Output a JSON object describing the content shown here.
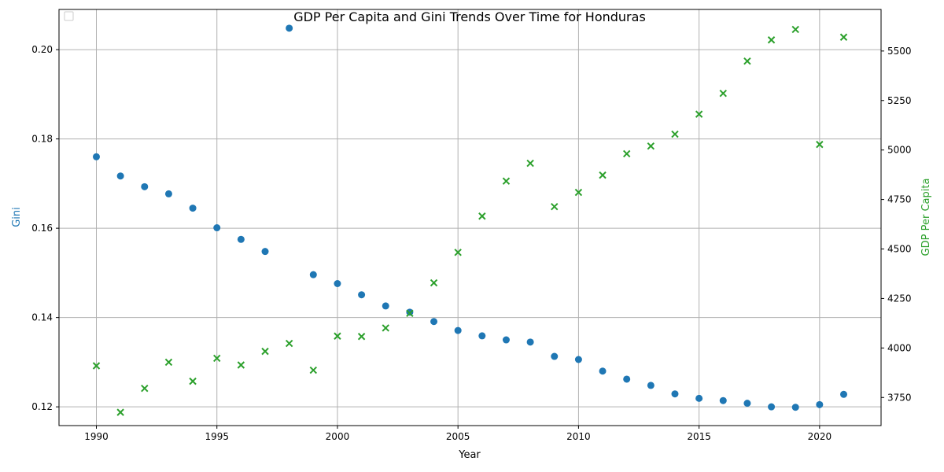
{
  "chart_data": {
    "type": "scatter",
    "title": "GDP Per Capita and Gini Trends Over Time for Honduras",
    "xlabel": "Year",
    "ylabel_left": "Gini",
    "ylabel_right": "GDP Per Capita",
    "xlim": [
      1988.45,
      1992.55
    ],
    "grid": true,
    "legend": "top-left, empty",
    "x_ticks": [
      1990,
      1995,
      2000,
      2005,
      2010,
      2015,
      2020
    ],
    "left_axis": {
      "range": [
        0.1158,
        0.209
      ],
      "ticks": [
        "0.12",
        "0.14",
        "0.16",
        "0.18",
        "0.20"
      ],
      "tick_values": [
        0.12,
        0.14,
        0.16,
        0.18,
        0.2
      ],
      "color": "#1f77b4"
    },
    "right_axis": {
      "range": [
        3608,
        5710
      ],
      "ticks": [
        "3750",
        "4000",
        "4250",
        "4500",
        "4750",
        "5000",
        "5250",
        "5500"
      ],
      "tick_values": [
        3750,
        4000,
        4250,
        4500,
        4750,
        5000,
        5250,
        5500
      ],
      "color": "#2ca02c"
    },
    "x": [
      1990,
      1991,
      1992,
      1993,
      1994,
      1995,
      1996,
      1997,
      1998,
      1999,
      2000,
      2001,
      2002,
      2003,
      2004,
      2005,
      2006,
      2007,
      2008,
      2009,
      2010,
      2011,
      2012,
      2013,
      2014,
      2015,
      2016,
      2017,
      2018,
      2019,
      2020,
      2021
    ],
    "series": [
      {
        "name": "Gini",
        "axis": "left",
        "marker": "circle",
        "color": "#1f77b4",
        "x": [
          1990,
          1991,
          1992,
          1993,
          1994,
          1995,
          1996,
          1997,
          1998,
          1999,
          2000,
          2001,
          2002,
          2003,
          2004,
          2005,
          2006,
          2007,
          2008,
          2009,
          2010,
          2011,
          2012,
          2013,
          2014,
          2015,
          2016,
          2017,
          2018,
          2019,
          2020,
          2021
        ],
        "values": [
          0.176,
          0.1717,
          0.1693,
          0.1677,
          0.1645,
          0.1601,
          0.1575,
          0.1548,
          0.2048,
          0.1496,
          0.1476,
          0.1451,
          0.1426,
          0.1412,
          0.1391,
          0.1371,
          0.1359,
          0.135,
          0.1345,
          0.1313,
          0.1306,
          0.128,
          0.1262,
          0.1248,
          0.1229,
          0.1219,
          0.1214,
          0.1208,
          0.12,
          0.1199,
          0.1205,
          0.1228
        ]
      },
      {
        "name": "GDP Per Capita",
        "axis": "right",
        "marker": "x",
        "color": "#2ca02c",
        "x": [
          1990,
          1991,
          1992,
          1993,
          1994,
          1995,
          1996,
          1997,
          1998,
          1999,
          2000,
          2001,
          2002,
          2003,
          2004,
          2005,
          2006,
          2007,
          2008,
          2009,
          2010,
          2011,
          2012,
          2013,
          2014,
          2015,
          2016,
          2017,
          2018,
          2019,
          2020,
          2021
        ],
        "values": [
          3910,
          3675,
          3796,
          3928,
          3832,
          3948,
          3914,
          3983,
          4023,
          3888,
          4060,
          4058,
          4101,
          4175,
          4329,
          4483,
          4666,
          4843,
          4933,
          4714,
          4786,
          4873,
          4981,
          5020,
          5080,
          5181,
          5286,
          5449,
          5556,
          5609,
          5028,
          5570
        ]
      }
    ]
  }
}
